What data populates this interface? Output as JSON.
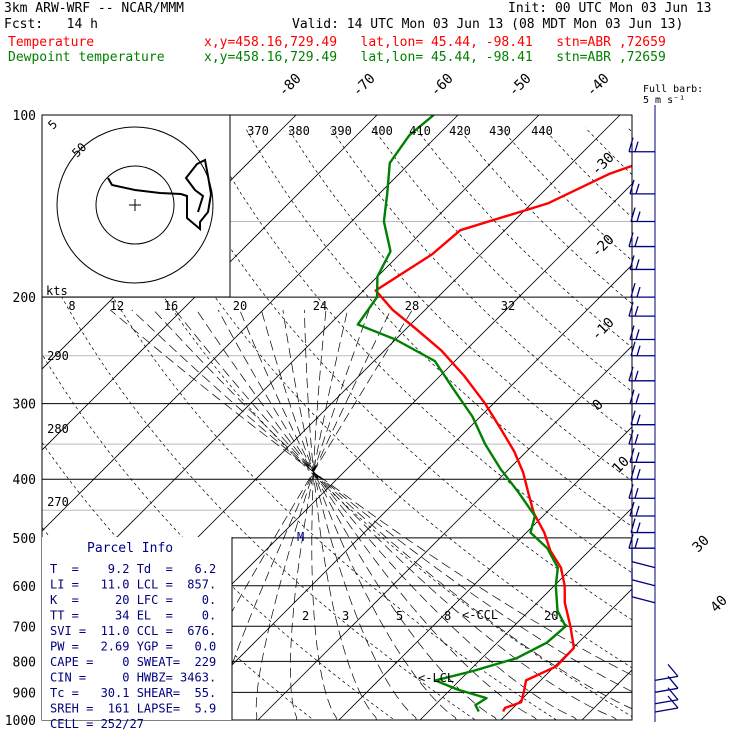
{
  "header": {
    "model": "3km ARW-WRF -- NCAR/MMM",
    "init": "Init: 00 UTC Mon 03 Jun 13",
    "fcst": "Fcst:   14 h",
    "valid": "Valid: 14 UTC Mon 03 Jun 13 (08 MDT Mon 03 Jun 13)",
    "temp_label": "Temperature",
    "dew_label": "Dewpoint temperature",
    "location": "x,y=458.16,729.49   lat,lon= 45.44, -98.41   stn=ABR ,72659"
  },
  "colors": {
    "temperature": "#ff0000",
    "dewpoint": "#008000",
    "barbs": "#000080",
    "hodograph": "#000000"
  },
  "parcel_info": {
    "title": "Parcel Info",
    "rows": [
      "T  =    9.2 Td  =   6.2",
      "LI =   11.0 LCL =  857.",
      "K  =     20 LFC =    0.",
      "TT =     34 EL  =    0.",
      "SVI =  11.0 CCL =  676.",
      "PW =   2.69 YGP =   0.0",
      "CAPE =    0 SWEAT=  229",
      "CIN =     0 HWBZ= 3463.",
      "Tc =   30.1 SHEAR=  55.",
      "SREH =  161 LAPSE=  5.9",
      "CELL = 252/27"
    ]
  },
  "barb_legend": {
    "line1": "Full barb:",
    "line2": "5 m s⁻¹"
  },
  "hodograph": {
    "ring_labels": [
      "5",
      "50"
    ],
    "units": "kts"
  },
  "chart_data": {
    "type": "line",
    "title": "",
    "ylabel": "",
    "xlabel": "",
    "y_axis": {
      "scale": "log",
      "range": [
        1000,
        100
      ],
      "ticks": [
        100,
        200,
        300,
        400,
        500,
        600,
        700,
        800,
        900,
        1000
      ]
    },
    "isotherm_labels": [
      "-80",
      "-70",
      "-60",
      "-50",
      "-40",
      "-30",
      "-20",
      "-10",
      "0",
      "10",
      "30",
      "40"
    ],
    "isotherm_values": [
      -80,
      -70,
      -60,
      -50,
      -40,
      -30,
      -20,
      -10,
      0,
      10,
      30,
      40
    ],
    "theta_labels_top": [
      "370",
      "380",
      "390",
      "400",
      "410",
      "420",
      "430",
      "440"
    ],
    "theta_labels_left": [
      "290",
      "280",
      "270"
    ],
    "mixing_ratio_labels": [
      "8",
      "12",
      "16",
      "20",
      "24",
      "28",
      "32"
    ],
    "lower_labels": [
      "2",
      "3",
      "5",
      "8",
      "<-CCL",
      "20",
      "<-LCL",
      "M"
    ],
    "series": [
      {
        "name": "Temperature",
        "points": [
          [
            968,
            9.2
          ],
          [
            955,
            9.0
          ],
          [
            935,
            10.3
          ],
          [
            900,
            9.4
          ],
          [
            860,
            8.2
          ],
          [
            815,
            10.2
          ],
          [
            760,
            10.1
          ],
          [
            700,
            7.0
          ],
          [
            640,
            3.4
          ],
          [
            600,
            1.3
          ],
          [
            560,
            -1.4
          ],
          [
            525,
            -4.8
          ],
          [
            490,
            -7.8
          ],
          [
            455,
            -11.5
          ],
          [
            420,
            -14.8
          ],
          [
            390,
            -17.8
          ],
          [
            360,
            -21.5
          ],
          [
            330,
            -26.0
          ],
          [
            300,
            -31.0
          ],
          [
            270,
            -37.0
          ],
          [
            245,
            -43.0
          ],
          [
            225,
            -49.0
          ],
          [
            210,
            -54.0
          ],
          [
            195,
            -58.5
          ],
          [
            170,
            -56.0
          ],
          [
            155,
            -55.5
          ],
          [
            140,
            -48.0
          ],
          [
            125,
            -44.0
          ],
          [
            115,
            -39.0
          ],
          [
            106,
            -34.5
          ],
          [
            100,
            -35.0
          ]
        ]
      },
      {
        "name": "Dewpoint temperature",
        "points": [
          [
            968,
            6.2
          ],
          [
            945,
            5.0
          ],
          [
            920,
            5.5
          ],
          [
            890,
            0.8
          ],
          [
            860,
            -3.0
          ],
          [
            830,
            0.5
          ],
          [
            790,
            4.3
          ],
          [
            745,
            6.1
          ],
          [
            700,
            6.4
          ],
          [
            660,
            3.5
          ],
          [
            600,
            0.2
          ],
          [
            560,
            -1.8
          ],
          [
            520,
            -5.5
          ],
          [
            490,
            -9.5
          ],
          [
            460,
            -11.0
          ],
          [
            420,
            -16.0
          ],
          [
            385,
            -21.0
          ],
          [
            350,
            -26.0
          ],
          [
            315,
            -31.0
          ],
          [
            285,
            -36.5
          ],
          [
            255,
            -42.5
          ],
          [
            235,
            -50.0
          ],
          [
            222,
            -56.5
          ],
          [
            200,
            -57.5
          ],
          [
            185,
            -60.0
          ],
          [
            168,
            -61.5
          ],
          [
            150,
            -66.0
          ],
          [
            135,
            -69.0
          ],
          [
            120,
            -72.5
          ],
          [
            108,
            -73.5
          ],
          [
            100,
            -73.0
          ]
        ]
      }
    ]
  }
}
